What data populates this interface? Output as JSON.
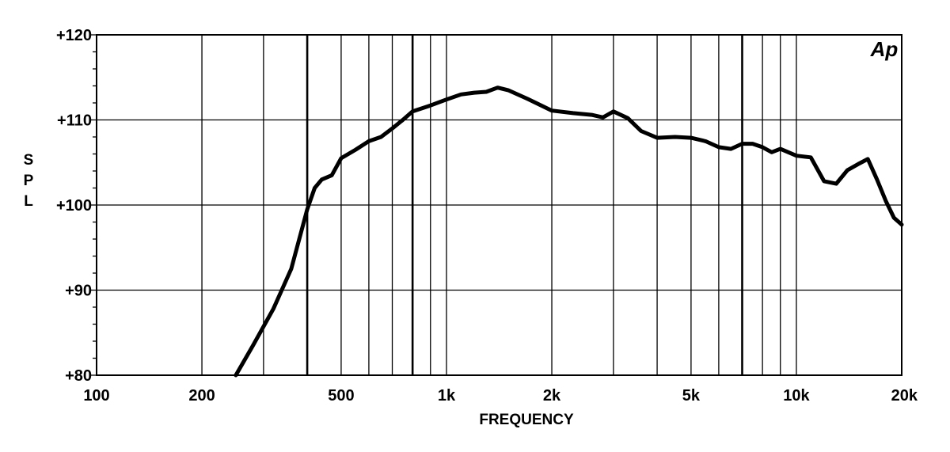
{
  "chart_data": {
    "type": "line",
    "title": "",
    "xlabel": "FREQUENCY",
    "ylabel": "S P L",
    "ylabel_letters": [
      "S",
      "P",
      "L"
    ],
    "x_scale": "log",
    "xlim": [
      100,
      20000
    ],
    "ylim": [
      80,
      120
    ],
    "grid": true,
    "logo": "Ap",
    "x_ticks": [
      {
        "value": 100,
        "label": "100"
      },
      {
        "value": 200,
        "label": "200"
      },
      {
        "value": 500,
        "label": "500"
      },
      {
        "value": 1000,
        "label": "1k"
      },
      {
        "value": 2000,
        "label": "2k"
      },
      {
        "value": 5000,
        "label": "5k"
      },
      {
        "value": 10000,
        "label": "10k"
      },
      {
        "value": 20000,
        "label": "20k"
      }
    ],
    "y_ticks": [
      {
        "value": 80,
        "label": "+80"
      },
      {
        "value": 90,
        "label": "+90"
      },
      {
        "value": 100,
        "label": "+100"
      },
      {
        "value": 110,
        "label": "+110"
      },
      {
        "value": 120,
        "label": "+120"
      }
    ],
    "x_gridlines": [
      200,
      300,
      400,
      500,
      600,
      700,
      800,
      900,
      1000,
      2000,
      3000,
      4000,
      5000,
      6000,
      7000,
      8000,
      9000,
      10000
    ],
    "x_gridlines_emphasized": [
      400,
      800,
      7000
    ],
    "y_gridlines": [
      90,
      100,
      110
    ],
    "series": [
      {
        "x": [
          250,
          280,
          320,
          360,
          400,
          420,
          440,
          470,
          500,
          550,
          600,
          650,
          700,
          750,
          800,
          900,
          1000,
          1100,
          1200,
          1300,
          1400,
          1500,
          1700,
          2000,
          2300,
          2600,
          2800,
          3000,
          3300,
          3600,
          4000,
          4500,
          5000,
          5500,
          6000,
          6500,
          7000,
          7500,
          8000,
          8500,
          9000,
          10000,
          11000,
          12000,
          13000,
          14000,
          15000,
          16000,
          17000,
          18000,
          19000,
          20000
        ],
        "y": [
          80,
          83.5,
          87.8,
          92.5,
          99.5,
          102,
          103,
          103.5,
          105.5,
          106.5,
          107.5,
          108,
          109,
          110,
          111,
          111.7,
          112.4,
          113,
          113.2,
          113.3,
          113.8,
          113.5,
          112.5,
          111.1,
          110.8,
          110.6,
          110.3,
          111,
          110.2,
          108.7,
          107.9,
          108,
          107.9,
          107.5,
          106.8,
          106.6,
          107.2,
          107.2,
          106.8,
          106.2,
          106.6,
          105.8,
          105.6,
          102.8,
          102.5,
          104.1,
          104.8,
          105.4,
          103,
          100.5,
          98.5,
          97.7
        ]
      }
    ]
  }
}
